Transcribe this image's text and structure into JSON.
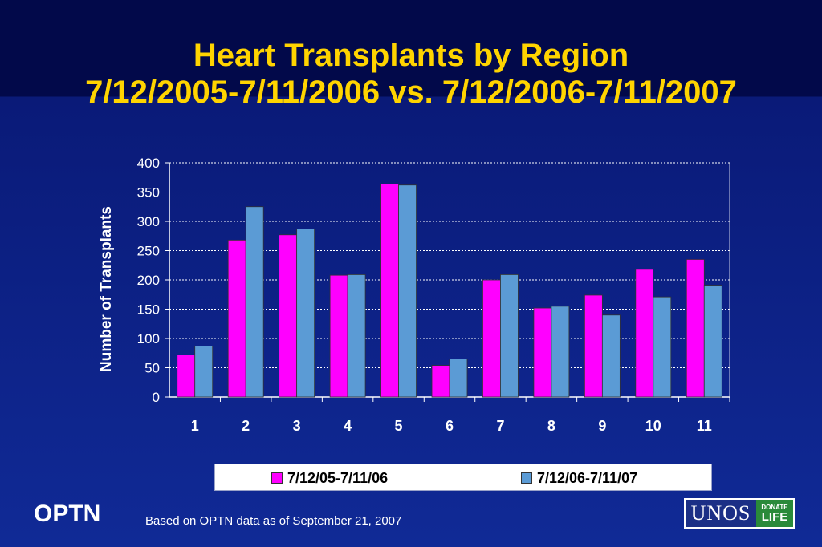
{
  "title_line1": "Heart Transplants by Region",
  "title_line2": "7/12/2005-7/11/2006 vs. 7/12/2006-7/11/2007",
  "footer": {
    "org": "OPTN",
    "note": "Based on OPTN data as of  September 21, 2007",
    "logo_text": "UNOS",
    "logo_badge_top": "DONATE",
    "logo_badge_bottom": "LIFE"
  },
  "colors": {
    "series1": "#ff00ff",
    "series2": "#5b9bd5",
    "title": "#ffd400",
    "background": "#0a1a78"
  },
  "chart_data": {
    "type": "bar",
    "title": "",
    "xlabel": "",
    "ylabel": "Number of Transplants",
    "categories": [
      "1",
      "2",
      "3",
      "4",
      "5",
      "6",
      "7",
      "8",
      "9",
      "10",
      "11"
    ],
    "series": [
      {
        "name": "7/12/05-7/11/06",
        "values": [
          72,
          268,
          277,
          208,
          364,
          54,
          200,
          152,
          174,
          218,
          235
        ]
      },
      {
        "name": "7/12/06-7/11/07",
        "values": [
          87,
          325,
          287,
          209,
          362,
          65,
          209,
          155,
          140,
          171,
          191
        ]
      }
    ],
    "ylim": [
      0,
      400
    ],
    "yticks": [
      0,
      50,
      100,
      150,
      200,
      250,
      300,
      350,
      400
    ],
    "grid": true,
    "legend": "bottom"
  }
}
